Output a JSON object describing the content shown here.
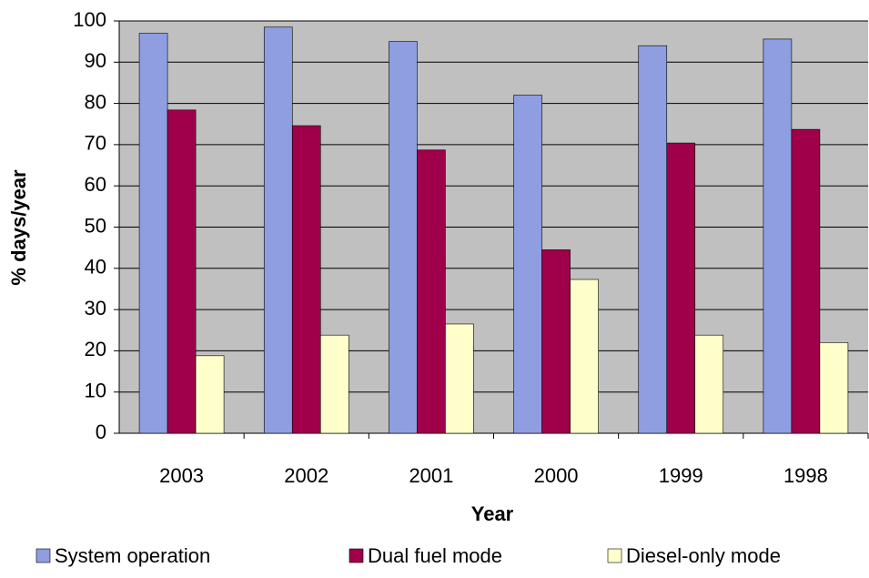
{
  "chart_data": {
    "type": "bar",
    "x_label": "Year",
    "y_label": "% days/year",
    "categories": [
      "2003",
      "2002",
      "2001",
      "2000",
      "1999",
      "1998"
    ],
    "series": [
      {
        "name": "System operation",
        "color": "#8f9ee0",
        "values": [
          97,
          98.5,
          95,
          82,
          94,
          95.6
        ]
      },
      {
        "name": "Dual fuel mode",
        "color": "#a0004a",
        "values": [
          78.4,
          74.6,
          68.7,
          44.5,
          70.4,
          73.7
        ]
      },
      {
        "name": "Diesel-only mode",
        "color": "#ffffcc",
        "values": [
          18.8,
          23.8,
          26.5,
          37.3,
          23.8,
          22
        ]
      }
    ],
    "ylim": [
      0,
      100
    ],
    "yticks": [
      0,
      10,
      20,
      30,
      40,
      50,
      60,
      70,
      80,
      90,
      100
    ],
    "grid": true,
    "legend": "bottom",
    "plot_background": "#c0c0c0"
  }
}
